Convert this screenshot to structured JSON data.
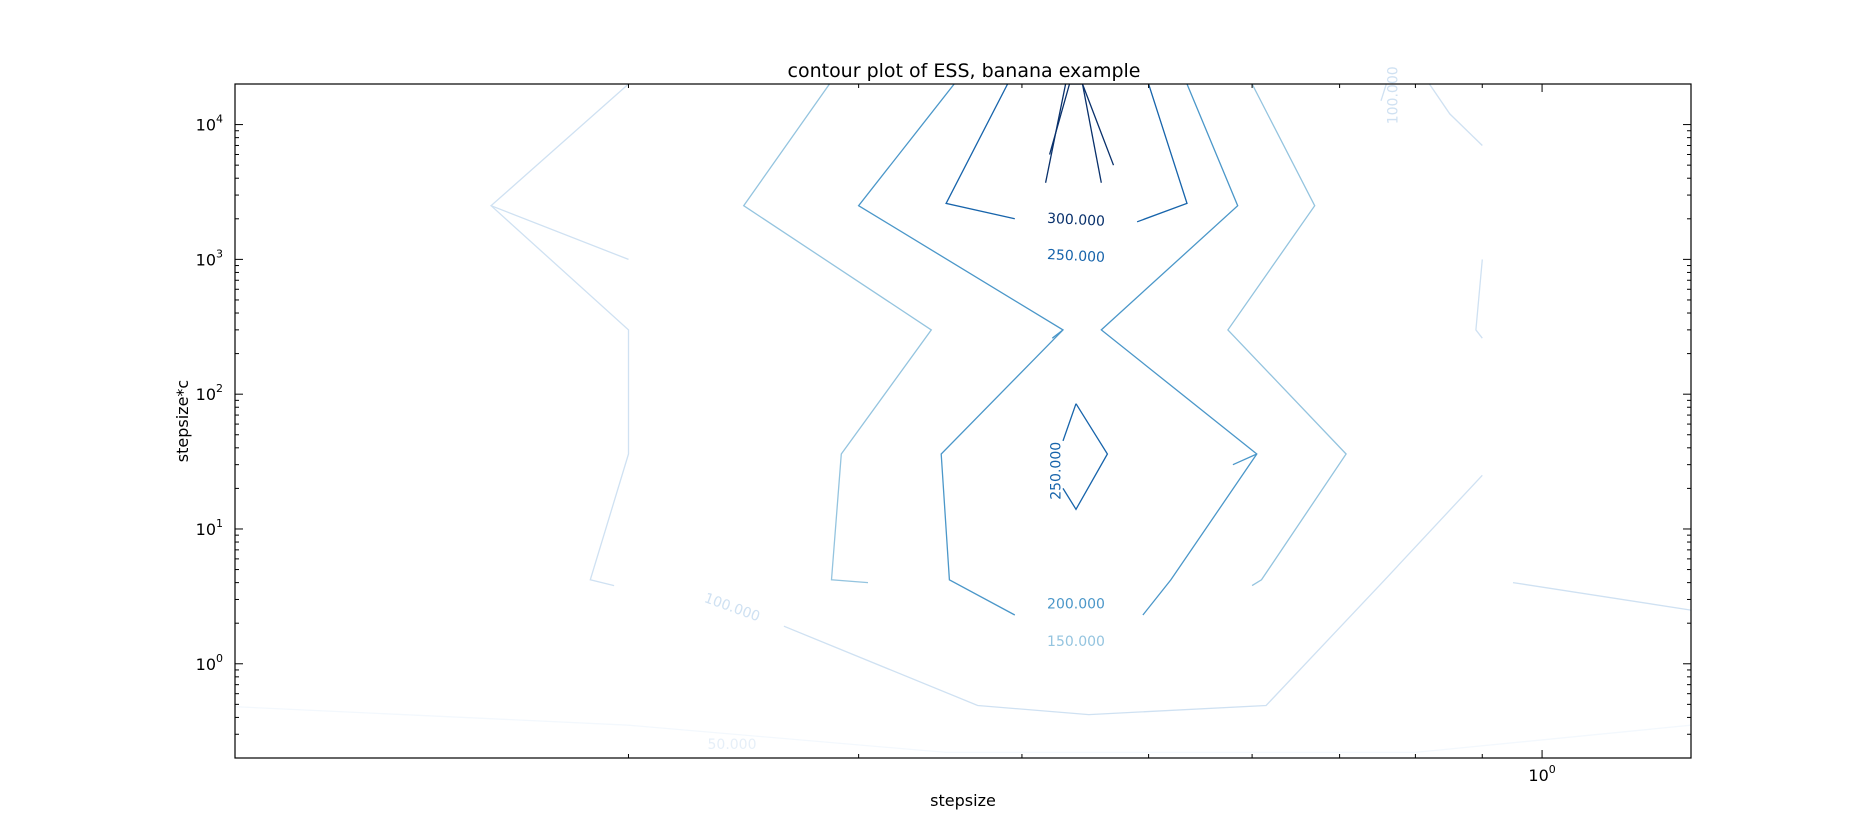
{
  "chart_data": {
    "type": "contour",
    "title": "contour plot of ESS, banana example",
    "xlabel": "stepsize",
    "ylabel": "stepsize*c",
    "xscale": "log",
    "yscale": "log",
    "xlim": [
      0.1,
      1.3
    ],
    "ylim": [
      0.2,
      20000
    ],
    "x_tick_labels": [
      {
        "value": 1,
        "base": "10",
        "exp": "0"
      }
    ],
    "y_tick_labels": [
      {
        "value": 1,
        "base": "10",
        "exp": "0"
      },
      {
        "value": 10,
        "base": "10",
        "exp": "1"
      },
      {
        "value": 100,
        "base": "10",
        "exp": "2"
      },
      {
        "value": 1000,
        "base": "10",
        "exp": "3"
      },
      {
        "value": 10000,
        "base": "10",
        "exp": "4"
      }
    ],
    "grid": false,
    "colormap": "Blues",
    "levels": [
      {
        "value": 50000,
        "color": "#f3f8fd",
        "lines": [
          [
            [
              0.1,
              0.48
            ],
            [
              0.2,
              0.35
            ],
            [
              0.35,
              0.22
            ],
            [
              0.8,
              0.22
            ],
            [
              1.3,
              0.35
            ]
          ]
        ]
      },
      {
        "value": 100000,
        "color": "#cfe1f2",
        "lines": [
          [
            [
              0.2,
              20000
            ],
            [
              0.157,
              2500
            ],
            [
              0.2,
              1000
            ]
          ],
          [
            [
              0.157,
              2500
            ],
            [
              0.2,
              300
            ],
            [
              0.2,
              36
            ],
            [
              0.187,
              4.2
            ],
            [
              0.195,
              3.8
            ]
          ],
          [
            [
              0.263,
              1.9
            ],
            [
              0.37,
              0.49
            ],
            [
              0.45,
              0.42
            ],
            [
              0.615,
              0.49
            ],
            [
              0.758,
              4.2
            ],
            [
              0.9,
              25
            ]
          ],
          [
            [
              0.76,
              20000
            ],
            [
              0.753,
              15000
            ]
          ],
          [
            [
              0.9,
              7000
            ],
            [
              0.85,
              12000
            ],
            [
              0.82,
              20000
            ]
          ],
          [
            [
              0.9,
              1000
            ],
            [
              0.89,
              300
            ],
            [
              0.9,
              260
            ]
          ],
          [
            [
              1.3,
              2.5
            ],
            [
              0.95,
              4.0
            ]
          ]
        ]
      },
      {
        "value": 150000,
        "color": "#94c4df",
        "lines": [
          [
            [
              0.285,
              20000
            ],
            [
              0.245,
              2500
            ],
            [
              0.341,
              300
            ],
            [
              0.291,
              36
            ],
            [
              0.286,
              4.2
            ],
            [
              0.305,
              4.0
            ]
          ],
          [
            [
              0.6,
              20000
            ],
            [
              0.67,
              2500
            ],
            [
              0.575,
              300
            ],
            [
              0.708,
              36
            ],
            [
              0.61,
              4.2
            ],
            [
              0.6,
              3.8
            ]
          ]
        ]
      },
      {
        "value": 200000,
        "color": "#4b97c9",
        "lines": [
          [
            [
              0.355,
              20000
            ],
            [
              0.3,
              2500
            ],
            [
              0.43,
              300
            ],
            [
              0.347,
              36
            ],
            [
              0.352,
              4.2
            ],
            [
              0.395,
              2.3
            ]
          ],
          [
            [
              0.43,
              300
            ],
            [
              0.422,
              260
            ]
          ],
          [
            [
              0.535,
              20000
            ],
            [
              0.585,
              2500
            ],
            [
              0.46,
              300
            ],
            [
              0.605,
              36
            ],
            [
              0.52,
              4.2
            ],
            [
              0.495,
              2.3
            ]
          ],
          [
            [
              0.605,
              36
            ],
            [
              0.58,
              30
            ]
          ]
        ]
      },
      {
        "value": 250000,
        "color": "#1764ab",
        "lines": [
          [
            [
              0.39,
              20000
            ],
            [
              0.35,
              2600
            ],
            [
              0.395,
              2000
            ]
          ],
          [
            [
              0.49,
              1900
            ],
            [
              0.535,
              2600
            ],
            [
              0.5,
              20000
            ]
          ],
          [
            [
              0.44,
              85
            ],
            [
              0.465,
              36
            ],
            [
              0.44,
              14
            ],
            [
              0.43,
              20
            ]
          ],
          [
            [
              0.44,
              85
            ],
            [
              0.43,
              45
            ]
          ]
        ]
      },
      {
        "value": 300000,
        "color": "#08306b",
        "lines": [
          [
            [
              0.42,
              6000
            ],
            [
              0.435,
              20000
            ],
            [
              0.445,
              20000
            ],
            [
              0.47,
              5000
            ]
          ],
          [
            [
              0.417,
              3700
            ],
            [
              0.432,
              20000
            ]
          ],
          [
            [
              0.445,
              20000
            ],
            [
              0.46,
              3700
            ]
          ]
        ]
      }
    ],
    "contour_labels": [
      {
        "text": "300.000",
        "x": 0.44,
        "y": 1950,
        "color": "#08306b",
        "angle": 3
      },
      {
        "text": "250.000",
        "x": 0.44,
        "y": 1050,
        "color": "#1764ab",
        "angle": 3
      },
      {
        "text": "250.000",
        "x": 0.425,
        "y": 27,
        "color": "#1764ab",
        "angle": -90
      },
      {
        "text": "200.000",
        "x": 0.44,
        "y": 2.75,
        "color": "#4b97c9",
        "angle": 0
      },
      {
        "text": "150.000",
        "x": 0.44,
        "y": 1.45,
        "color": "#94c4df",
        "angle": 0
      },
      {
        "text": "100.000",
        "x": 0.24,
        "y": 2.6,
        "color": "#cfe1f2",
        "angle": 20
      },
      {
        "text": "50.000",
        "x": 0.24,
        "y": 0.25,
        "color": "#e6eff8",
        "angle": 0
      },
      {
        "text": "100.000",
        "x": 0.77,
        "y": 16500,
        "color": "#cfe1f2",
        "angle": -90
      }
    ]
  }
}
